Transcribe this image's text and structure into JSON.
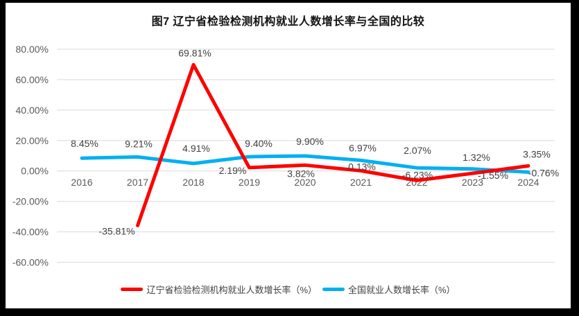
{
  "title": "图7 辽宁省检验检测机构就业人数增长率与全国的比较",
  "chart_data": {
    "type": "line",
    "title": "图7 辽宁省检验检测机构就业人数增长率与全国的比较",
    "categories": [
      "2016",
      "2017",
      "2018",
      "2019",
      "2020",
      "2021",
      "2022",
      "2023",
      "2024"
    ],
    "series": [
      {
        "name": "辽宁省检验检测机构就业人数增长率（%）",
        "color": "#ff0000",
        "values": [
          null,
          -35.81,
          69.81,
          2.19,
          3.82,
          0.13,
          -6.23,
          -1.55,
          3.35
        ],
        "labels": [
          "",
          "-35.81%",
          "69.81%",
          "2.19%",
          "3.82%",
          "0.13%",
          "-6.23%",
          "-1.55%",
          "3.35%"
        ]
      },
      {
        "name": "全国就业人数增长率（%）",
        "color": "#00b0f0",
        "values": [
          8.45,
          9.21,
          4.91,
          9.4,
          9.9,
          6.97,
          2.07,
          1.32,
          -0.76
        ],
        "labels": [
          "8.45%",
          "9.21%",
          "4.91%",
          "9.40%",
          "9.90%",
          "6.97%",
          "2.07%",
          "1.32%",
          "-0.76%"
        ]
      }
    ],
    "y_axis": {
      "min": -60,
      "max": 80,
      "step": 20,
      "tick_labels": [
        "80.00%",
        "60.00%",
        "40.00%",
        "20.00%",
        "0.00%",
        "-20.00%",
        "-40.00%",
        "-60.00%"
      ]
    },
    "grid": "horizontal",
    "legend_position": "bottom",
    "gridline_color": "#d9d9d9",
    "axis_label_color": "#595959",
    "data_label_color": "#404040"
  }
}
